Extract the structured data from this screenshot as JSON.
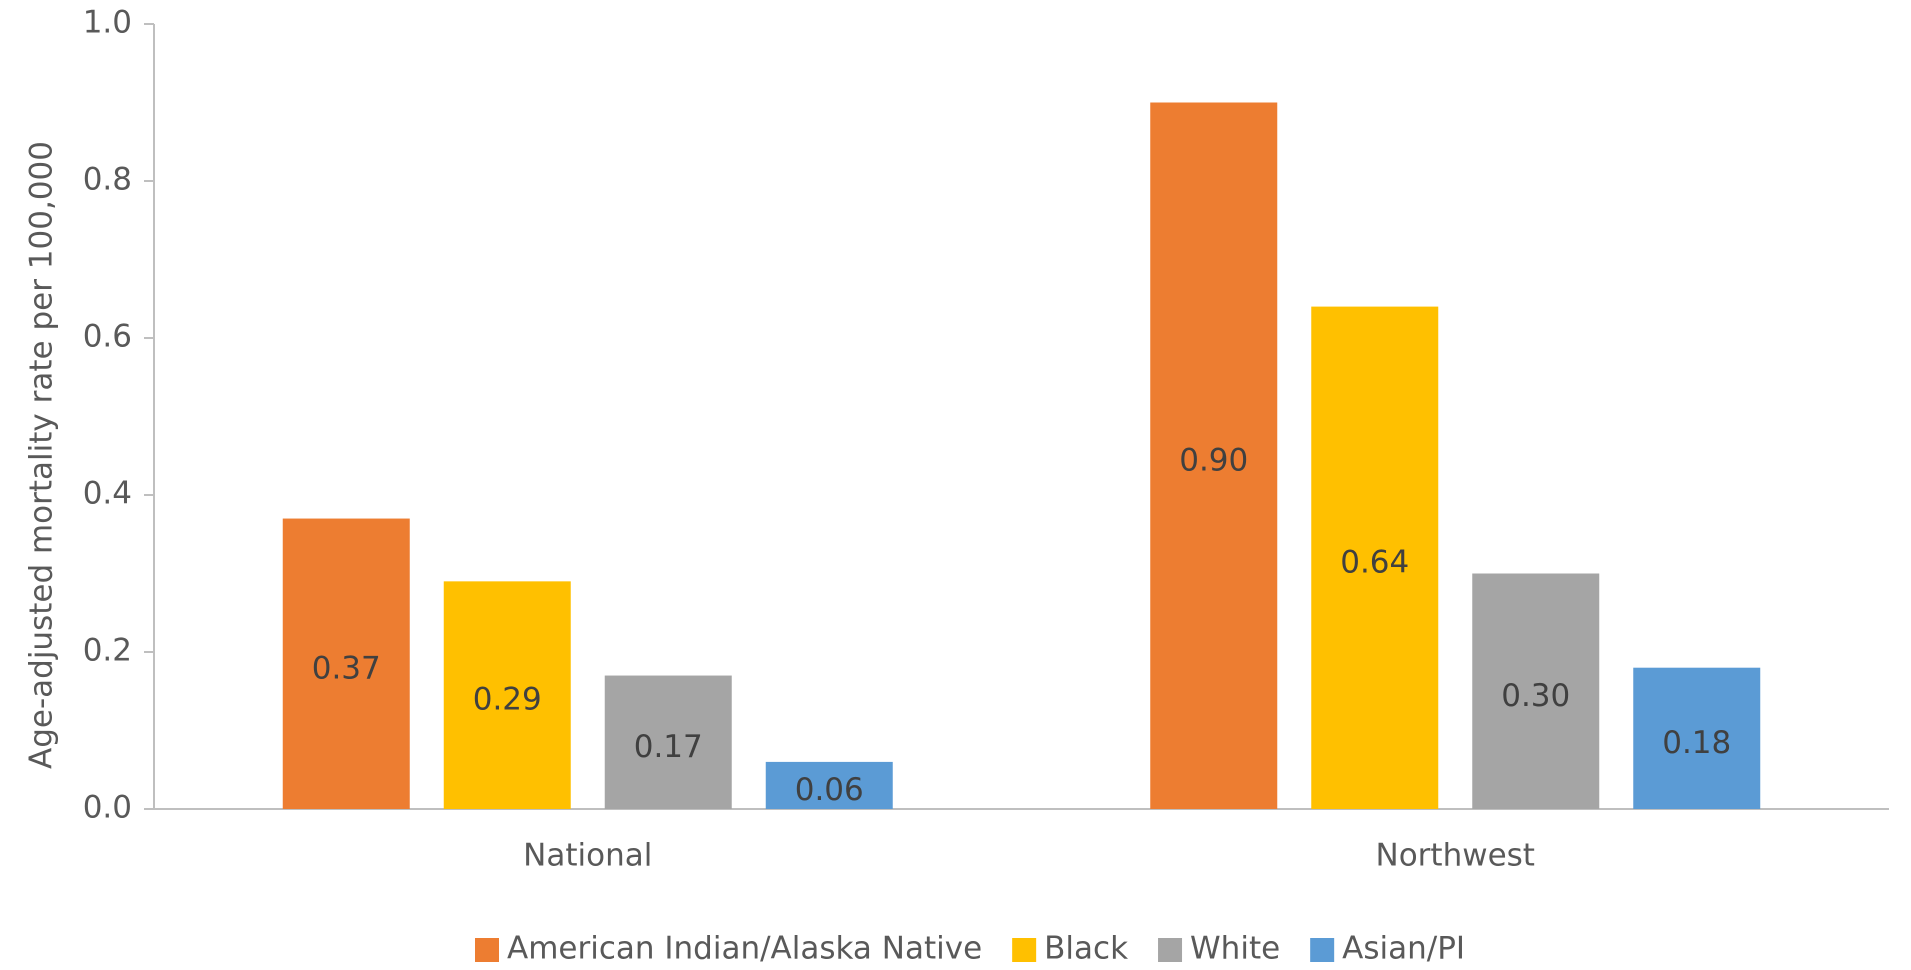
{
  "chart_data": {
    "type": "bar",
    "y_label": "Age-adjusted mortality rate per 100,000",
    "categories": [
      "National",
      "Northwest"
    ],
    "series": [
      {
        "name": "American Indian/Alaska Native",
        "color": "#ed7d31",
        "values": [
          0.37,
          0.9
        ],
        "value_labels": [
          "0.37",
          "0.90"
        ]
      },
      {
        "name": "Black",
        "color": "#ffc000",
        "values": [
          0.29,
          0.64
        ],
        "value_labels": [
          "0.29",
          "0.64"
        ]
      },
      {
        "name": "White",
        "color": "#a5a5a5",
        "values": [
          0.17,
          0.3
        ],
        "value_labels": [
          "0.17",
          "0.30"
        ]
      },
      {
        "name": "Asian/PI",
        "color": "#5b9bd5",
        "values": [
          0.06,
          0.18
        ],
        "value_labels": [
          "0.06",
          "0.18"
        ]
      }
    ],
    "ylim": [
      0,
      1
    ],
    "yticks": [
      {
        "value": 0,
        "label": "0.0"
      },
      0.2,
      0.4,
      0.6,
      0.8,
      {
        "value": 1,
        "label": "1.0"
      }
    ],
    "legend": "bottom"
  }
}
